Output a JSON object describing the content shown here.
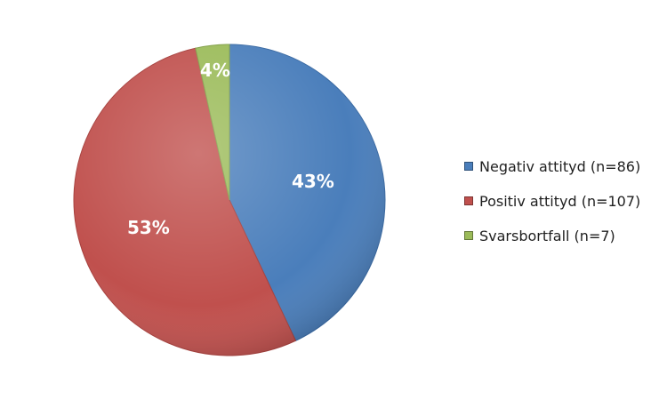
{
  "chart_data": {
    "type": "pie",
    "categories": [
      "Negativ attityd (n=86)",
      "Positiv attityd (n=107)",
      "Svarsbortfall (n=7)"
    ],
    "values": [
      86,
      107,
      7
    ],
    "percent_labels": [
      "43%",
      "53%",
      "4%"
    ],
    "colors": [
      "#4a7ebb",
      "#c0504d",
      "#9bbb59"
    ],
    "legend_position": "right"
  }
}
